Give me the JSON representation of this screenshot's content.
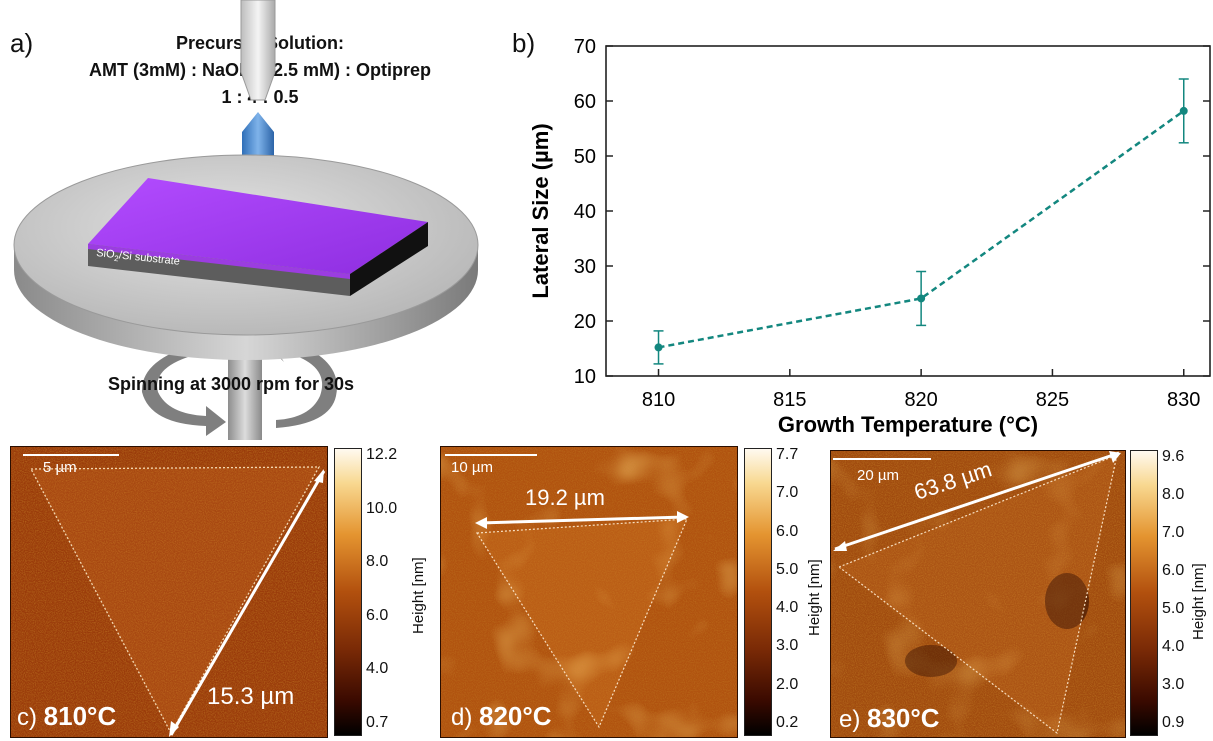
{
  "panel_a": {
    "label": "a)",
    "precursor_line1": "Precursor Solution:",
    "precursor_line2": "AMT (3mM) : NaOH (62.5 mM) : Optiprep",
    "precursor_line3": "1 : 4 : 0.5",
    "substrate_label": "SiO",
    "substrate_sub": "2",
    "substrate_rest": "/Si substrate",
    "spin_text": "Spinning at 3000 rpm for 30s",
    "colors": {
      "substrate_top": "#a23cf0",
      "droplet": "#4f8fd6",
      "disc": "#b9b9b9"
    }
  },
  "panel_b": {
    "label": "b)"
  },
  "chart_data": {
    "type": "scatter",
    "x": [
      810,
      820,
      830
    ],
    "y": [
      15.2,
      24.1,
      58.2
    ],
    "error": [
      3.0,
      4.9,
      5.8
    ],
    "xlabel": "Growth Temperature (°C)",
    "ylabel": "Lateral Size (µm)",
    "xlim": [
      808,
      831
    ],
    "ylim": [
      10,
      70
    ],
    "xticks": [
      "810",
      "815",
      "820",
      "825",
      "830"
    ],
    "yticks": [
      "10",
      "20",
      "30",
      "40",
      "50",
      "60",
      "70"
    ],
    "xtick_values": [
      810,
      815,
      820,
      825,
      830
    ],
    "ytick_values": [
      10,
      20,
      30,
      40,
      50,
      60,
      70
    ],
    "line_style": "dashed",
    "color": "#13877f"
  },
  "afm_panels": [
    {
      "label_letter": "c)",
      "label_temp": "810°C",
      "scale_text": "5 µm",
      "measurement": "15.3 µm",
      "colorbar_title": "Height [nm]",
      "colorbar_ticks": [
        "12.2",
        "10.0",
        "8.0",
        "6.0",
        "4.0",
        "0.7"
      ]
    },
    {
      "label_letter": "d)",
      "label_temp": "820°C",
      "scale_text": "10 µm",
      "measurement": "19.2 µm",
      "colorbar_title": "Height [nm]",
      "colorbar_ticks": [
        "7.7",
        "7.0",
        "6.0",
        "5.0",
        "4.0",
        "3.0",
        "2.0",
        "0.2"
      ]
    },
    {
      "label_letter": "e)",
      "label_temp": "830°C",
      "scale_text": "20 µm",
      "measurement": "63.8 µm",
      "colorbar_title": "Height [nm]",
      "colorbar_ticks": [
        "9.6",
        "8.0",
        "7.0",
        "6.0",
        "5.0",
        "4.0",
        "3.0",
        "0.9"
      ]
    }
  ]
}
